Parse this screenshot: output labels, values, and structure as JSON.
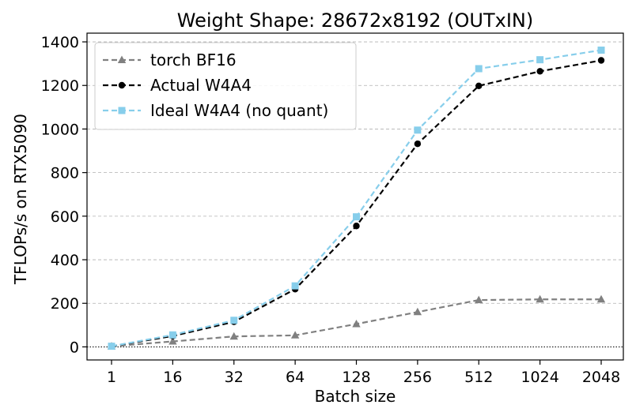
{
  "chart_data": {
    "type": "line",
    "title": "Weight Shape: 28672x8192 (OUTxIN)",
    "xlabel": "Batch size",
    "ylabel": "TFLOPs/s on RTX5090",
    "categories": [
      "1",
      "16",
      "32",
      "64",
      "128",
      "256",
      "512",
      "1024",
      "2048"
    ],
    "ylim": [
      -60,
      1440
    ],
    "yticks": [
      0,
      200,
      400,
      600,
      800,
      1000,
      1200,
      1400
    ],
    "ytick_labels": [
      "0",
      "200",
      "400",
      "600",
      "800",
      "1000",
      "1200",
      "1400"
    ],
    "grid": "horizontal dashed",
    "zero_line": "dotted",
    "legend_position": "top-left",
    "series": [
      {
        "name": "torch BF16",
        "color": "#808080",
        "marker": "triangle",
        "line_style": "dashed",
        "values": [
          3,
          25,
          48,
          53,
          105,
          160,
          215,
          218,
          218
        ]
      },
      {
        "name": "Actual W4A4",
        "color": "#000000",
        "marker": "circle",
        "line_style": "dashed",
        "values": [
          3,
          50,
          115,
          265,
          555,
          932,
          1198,
          1265,
          1315
        ]
      },
      {
        "name": "Ideal W4A4 (no quant)",
        "color": "#87ceeb",
        "marker": "square",
        "line_style": "dashed",
        "values": [
          3,
          55,
          122,
          280,
          597,
          995,
          1277,
          1318,
          1362
        ]
      }
    ]
  }
}
